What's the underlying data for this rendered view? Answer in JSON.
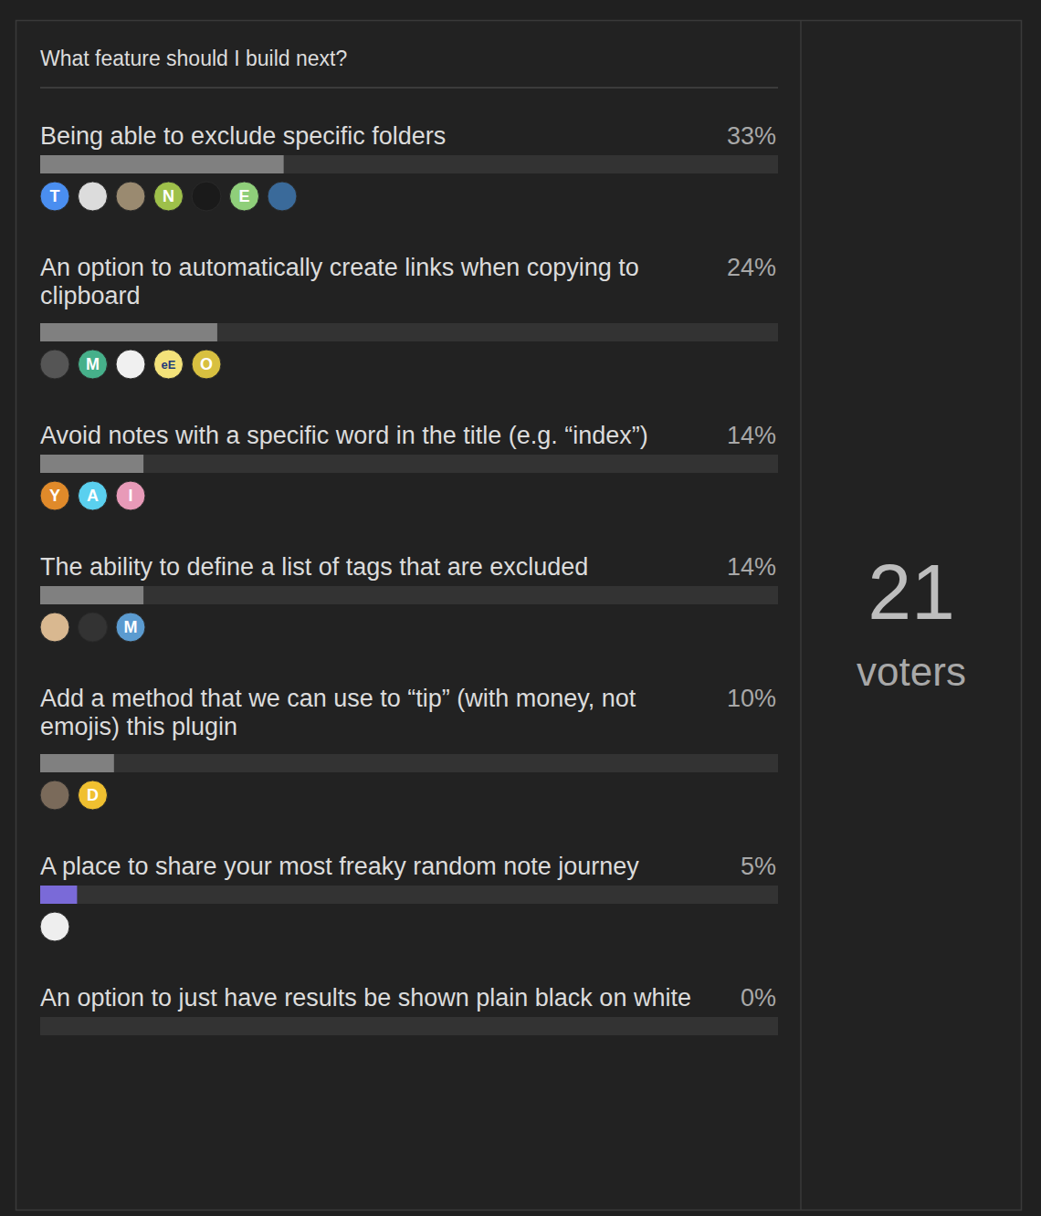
{
  "chart_data": {
    "type": "bar",
    "orientation": "horizontal",
    "title": "What feature should I build next?",
    "categories": [
      "Being able to exclude specific folders",
      "An option to automatically create links when copying to clipboard",
      "Avoid notes with a specific word in the title (e.g. “index”)",
      "The ability to define a list of tags that are excluded",
      "Add a method that we can use to “tip” (with money, not emojis) this plugin",
      "A place to share your most freaky random note journey",
      "An option to just have results be shown plain black on white"
    ],
    "values": [
      33,
      24,
      14,
      14,
      10,
      5,
      0
    ],
    "value_labels": [
      "33%",
      "24%",
      "14%",
      "14%",
      "10%",
      "5%",
      "0%"
    ],
    "data_labels": true,
    "colors": [
      "#808080",
      "#808080",
      "#808080",
      "#808080",
      "#808080",
      "#7a6ad8",
      "#808080"
    ],
    "xlim": [
      0,
      100
    ],
    "tick_labels": false,
    "grid": false,
    "avatars": [
      [
        {
          "label": "T",
          "color": "#4a8ef0"
        },
        {
          "label": null,
          "color": "#dcdcdc"
        },
        {
          "label": null,
          "color": "#9a8a70"
        },
        {
          "label": "N",
          "color": "#9ec04a"
        },
        {
          "label": null,
          "color": "#1a1a1a"
        },
        {
          "label": "E",
          "color": "#8fcf7a"
        },
        {
          "label": null,
          "color": "#3a6a9a"
        }
      ],
      [
        {
          "label": null,
          "color": "#555555"
        },
        {
          "label": "M",
          "color": "#46b08a"
        },
        {
          "label": null,
          "color": "#f0f0f0"
        },
        {
          "label": "eE",
          "color": "#f3e27a"
        },
        {
          "label": "O",
          "color": "#d8c040"
        }
      ],
      [
        {
          "label": "Y",
          "color": "#e08a2a"
        },
        {
          "label": "A",
          "color": "#5ad0ef"
        },
        {
          "label": "I",
          "color": "#e89ab8"
        }
      ],
      [
        {
          "label": null,
          "color": "#d9b890"
        },
        {
          "label": null,
          "color": "#333333"
        },
        {
          "label": "M",
          "color": "#5b9bd0"
        }
      ],
      [
        {
          "label": null,
          "color": "#7a6a5a"
        },
        {
          "label": "D",
          "color": "#f0c030"
        }
      ],
      [
        {
          "label": null,
          "color": "#eeeeee"
        }
      ],
      []
    ],
    "annotations": [
      {
        "value": 21,
        "text": "voters"
      }
    ]
  }
}
